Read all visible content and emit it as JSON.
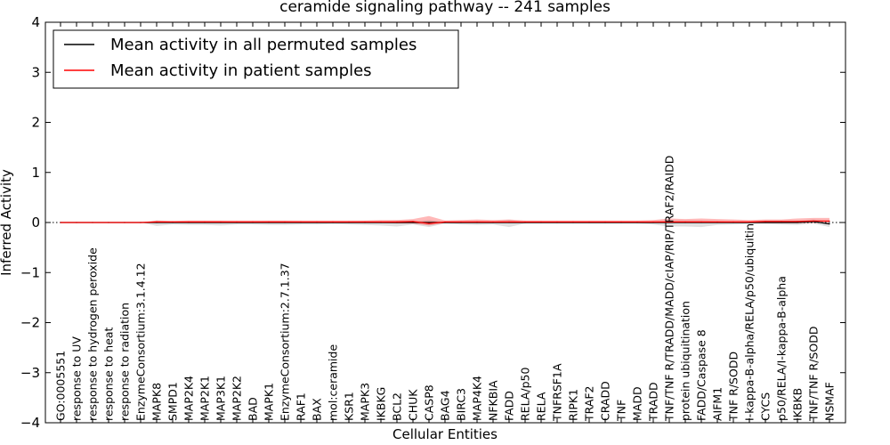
{
  "chart_data": {
    "type": "line",
    "title": "ceramide signaling pathway -- 241 samples",
    "xlabel": "Cellular Entities",
    "ylabel": "Inferred Activity",
    "ylim": [
      -4,
      4
    ],
    "yticks": [
      4,
      3,
      2,
      1,
      0,
      -1,
      -2,
      -3,
      -4
    ],
    "ytick_labels": [
      "4",
      "3",
      "2",
      "1",
      "0",
      "−1",
      "−2",
      "−3",
      "−4"
    ],
    "grid": false,
    "legend_position": "top-left",
    "categories": [
      "GO:0005551",
      "response to UV",
      "response to hydrogen peroxide",
      "response to heat",
      "response to radiation",
      "EnzymeConsortium:3.1.4.12",
      "MAPK8",
      "SMPD1",
      "MAP2K4",
      "MAP2K1",
      "MAP3K1",
      "MAP2K2",
      "BAD",
      "MAPK1",
      "EnzymeConsortium:2.7.1.37",
      "RAF1",
      "BAX",
      "mol:ceramide",
      "KSR1",
      "MAPK3",
      "IKBKG",
      "BCL2",
      "CHUK",
      "CASP8",
      "BAG4",
      "BIRC3",
      "MAP4K4",
      "NFKBIA",
      "FADD",
      "RELA/p50",
      "RELA",
      "TNFRSF1A",
      "RIPK1",
      "TRAF2",
      "CRADD",
      "TNF",
      "MADD",
      "TRADD",
      "TNF/TNF R/TRADD/MADD/cIAP/RIP/TRAF2/RAIDD",
      "protein ubiquitination",
      "FADD/Caspase 8",
      "AIFM1",
      "TNF R/SODD",
      "I-kappa-B-alpha/RELA/p50/ubiquitin",
      "CYCS",
      "p50/RELA/I-kappa-B-alpha",
      "IKBKB",
      "TNF/TNF R/SODD",
      "NSMAF"
    ],
    "series": [
      {
        "name": "Mean activity in all permuted samples",
        "color": "#000000",
        "values": [
          0,
          0,
          0,
          0,
          0,
          0,
          0,
          0,
          0,
          0,
          0,
          0,
          0,
          0,
          0,
          0,
          0,
          0,
          0,
          0,
          0,
          0,
          0,
          0,
          0,
          0,
          0,
          0,
          0,
          0,
          0,
          0,
          0,
          0,
          0,
          0,
          0,
          0,
          0,
          0,
          0,
          0,
          0,
          0,
          0,
          0,
          0,
          0.02,
          -0.03
        ],
        "band_lower": [
          0,
          0,
          0,
          0,
          0,
          0,
          -0.07,
          -0.04,
          -0.05,
          -0.05,
          -0.06,
          -0.04,
          -0.04,
          -0.05,
          -0.05,
          -0.04,
          -0.04,
          -0.03,
          -0.04,
          -0.05,
          -0.06,
          -0.08,
          -0.04,
          -0.09,
          -0.02,
          -0.04,
          -0.05,
          -0.04,
          -0.09,
          -0.02,
          -0.02,
          -0.02,
          -0.02,
          -0.02,
          -0.02,
          -0.02,
          -0.02,
          -0.04,
          -0.08,
          -0.08,
          -0.09,
          -0.05,
          -0.04,
          -0.03,
          -0.03,
          -0.04,
          -0.05,
          -0.02,
          -0.09
        ],
        "band_upper": [
          0,
          0,
          0,
          0,
          0,
          0,
          0.04,
          0.02,
          0.03,
          0.03,
          0.03,
          0.02,
          0.02,
          0.03,
          0.03,
          0.02,
          0.02,
          0.02,
          0.02,
          0.03,
          0.03,
          0.04,
          0.02,
          0.05,
          0.01,
          0.02,
          0.03,
          0.02,
          0.05,
          0.01,
          0.01,
          0.01,
          0.01,
          0.01,
          0.01,
          0.01,
          0.01,
          0.02,
          0.04,
          0.04,
          0.04,
          0.03,
          0.02,
          0.02,
          0.02,
          0.02,
          0.03,
          0.06,
          0.02
        ]
      },
      {
        "name": "Mean activity in patient samples",
        "color": "#ff0000",
        "values": [
          0,
          0,
          0,
          0,
          0,
          0,
          0.01,
          0.01,
          0.01,
          0.01,
          0.01,
          0.01,
          0.01,
          0.01,
          0.01,
          0.01,
          0.01,
          0.01,
          0.01,
          0.01,
          0.01,
          0.01,
          0.02,
          -0.02,
          0.01,
          0.01,
          0.01,
          0.01,
          0.01,
          0.01,
          0.01,
          0.01,
          0.01,
          0.01,
          0.01,
          0.01,
          0.01,
          0.01,
          0.01,
          0.01,
          0.01,
          0.01,
          0.01,
          0.01,
          0.02,
          0.02,
          0.02,
          0.03,
          0.03
        ],
        "band_lower": [
          0,
          0,
          0,
          0,
          0,
          0,
          -0.01,
          0,
          -0.01,
          -0.01,
          -0.01,
          -0.01,
          -0.01,
          -0.01,
          -0.01,
          -0.01,
          -0.01,
          -0.01,
          -0.01,
          -0.01,
          -0.01,
          -0.02,
          -0.02,
          -0.06,
          -0.01,
          -0.01,
          -0.01,
          -0.01,
          -0.01,
          -0.01,
          -0.01,
          -0.01,
          -0.01,
          -0.01,
          -0.01,
          -0.01,
          -0.01,
          -0.01,
          -0.01,
          -0.01,
          -0.01,
          -0.01,
          -0.01,
          -0.01,
          -0.01,
          -0.01,
          -0.01,
          -0.01,
          -0.01
        ],
        "band_upper": [
          0,
          0,
          0,
          0,
          0,
          0,
          0.04,
          0.03,
          0.04,
          0.04,
          0.04,
          0.04,
          0.04,
          0.04,
          0.04,
          0.04,
          0.04,
          0.04,
          0.04,
          0.04,
          0.05,
          0.05,
          0.07,
          0.13,
          0.04,
          0.05,
          0.06,
          0.05,
          0.06,
          0.04,
          0.04,
          0.04,
          0.04,
          0.04,
          0.04,
          0.04,
          0.04,
          0.05,
          0.08,
          0.07,
          0.08,
          0.07,
          0.06,
          0.05,
          0.06,
          0.06,
          0.08,
          0.09,
          0.09
        ]
      }
    ],
    "reference_line": {
      "y": 0,
      "style": "dotted"
    }
  }
}
